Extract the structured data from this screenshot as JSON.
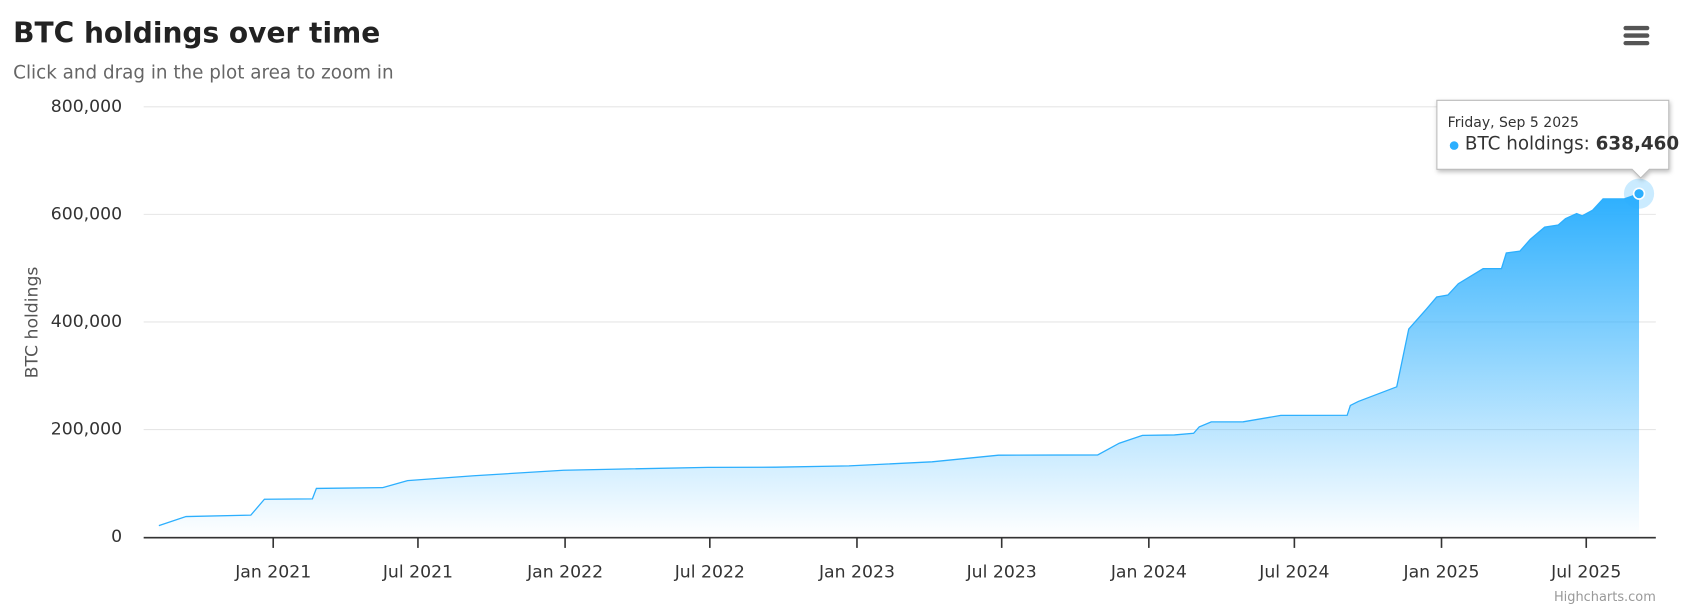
{
  "chart_data": {
    "type": "area",
    "title": "BTC holdings over time",
    "subtitle": "Click and drag in the plot area to zoom in",
    "y_label": "BTC holdings",
    "credits": "Highcharts.com",
    "x": [
      "2020-08-11",
      "2020-09-14",
      "2020-12-04",
      "2020-12-21",
      "2021-02-19",
      "2021-02-24",
      "2021-05-18",
      "2021-06-18",
      "2021-09-09",
      "2021-12-30",
      "2022-06-28",
      "2022-09-21",
      "2022-12-22",
      "2023-04-05",
      "2023-06-27",
      "2023-10-29",
      "2023-11-25",
      "2023-12-24",
      "2024-02-02",
      "2024-02-26",
      "2024-03-04",
      "2024-03-19",
      "2024-04-28",
      "2024-06-14",
      "2024-09-05",
      "2024-09-09",
      "2024-09-19",
      "2024-11-06",
      "2024-11-21",
      "2024-12-13",
      "2024-12-26",
      "2025-01-09",
      "2025-01-22",
      "2025-02-22",
      "2025-03-17",
      "2025-03-23",
      "2025-04-09",
      "2025-04-22",
      "2025-05-10",
      "2025-05-27",
      "2025-06-05",
      "2025-06-19",
      "2025-06-26",
      "2025-07-09",
      "2025-07-22",
      "2025-08-18",
      "2025-09-05"
    ],
    "series": [
      {
        "name": "BTC holdings",
        "color": "#2caffe",
        "values": [
          21454,
          38250,
          40824,
          70470,
          71079,
          90531,
          92079,
          105085,
          114042,
          124391,
          129699,
          130000,
          132500,
          140000,
          152333,
          152800,
          174530,
          189150,
          190000,
          193000,
          205000,
          214246,
          214400,
          226331,
          226500,
          244800,
          252220,
          279420,
          386700,
          423650,
          446400,
          450000,
          471107,
          499096,
          499226,
          528185,
          531644,
          553555,
          576230,
          580250,
          592100,
          601550,
          597325,
          607770,
          628791,
          629000,
          638460
        ]
      }
    ],
    "xlim": [
      "2020-07-23",
      "2025-09-26"
    ],
    "xticks": [
      {
        "value": "2021-01-01",
        "label": "Jan 2021"
      },
      {
        "value": "2021-07-01",
        "label": "Jul 2021"
      },
      {
        "value": "2022-01-01",
        "label": "Jan 2022"
      },
      {
        "value": "2022-07-01",
        "label": "Jul 2022"
      },
      {
        "value": "2023-01-01",
        "label": "Jan 2023"
      },
      {
        "value": "2023-07-01",
        "label": "Jul 2023"
      },
      {
        "value": "2024-01-01",
        "label": "Jan 2024"
      },
      {
        "value": "2024-07-01",
        "label": "Jul 2024"
      },
      {
        "value": "2025-01-01",
        "label": "Jan 2025"
      },
      {
        "value": "2025-07-01",
        "label": "Jul 2025"
      }
    ],
    "ylim": [
      0,
      800000
    ],
    "yticks": [
      0,
      {
        "value": 200000,
        "label": "200,000"
      },
      {
        "value": 400000,
        "label": "400,000"
      },
      {
        "value": 600000,
        "label": "600,000"
      },
      {
        "value": 800000,
        "label": "800,000"
      }
    ],
    "grid": true,
    "tooltip": {
      "header": "Friday, Sep 5 2025",
      "series_label": "BTC holdings:",
      "value_label": "638,460"
    }
  }
}
